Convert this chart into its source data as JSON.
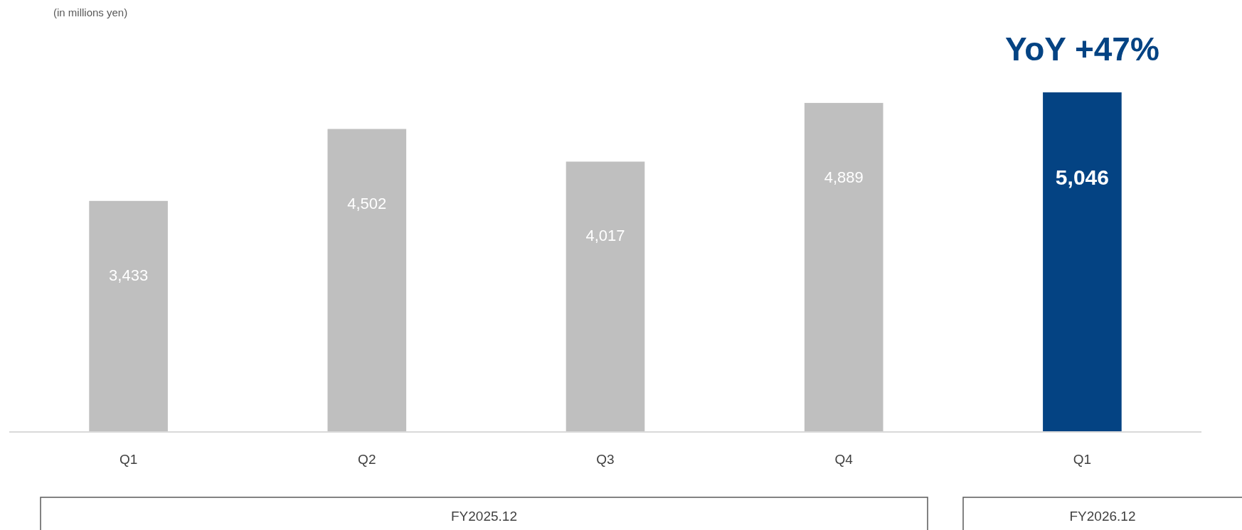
{
  "chart_data": {
    "type": "bar",
    "categories": [
      "Q1",
      "Q2",
      "Q3",
      "Q4",
      "Q1"
    ],
    "values": [
      3433,
      4502,
      4017,
      4889,
      5046
    ],
    "colors": [
      "#bfbfbf",
      "#bfbfbf",
      "#bfbfbf",
      "#bfbfbf",
      "#044383"
    ],
    "value_labels": [
      "3,433",
      "4,502",
      "4,017",
      "4,889",
      "5,046"
    ],
    "tick_labels": "x",
    "annotations": [
      "(in millions yen)",
      "YoY +47%",
      "FY2025.12",
      "FY2026.12"
    ]
  }
}
